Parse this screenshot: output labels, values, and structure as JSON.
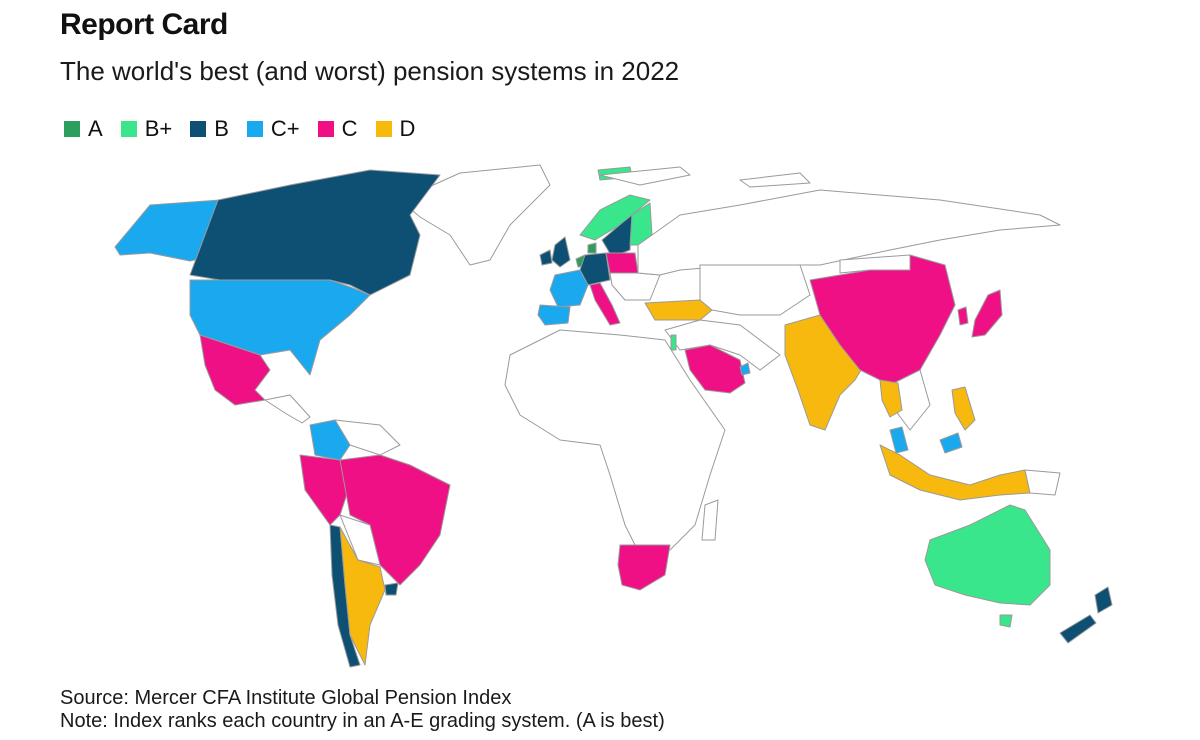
{
  "title": "Report Card",
  "subtitle": "The world's best (and worst) pension systems in 2022",
  "legend": [
    {
      "grade": "A",
      "color": "#2e9e5e"
    },
    {
      "grade": "B+",
      "color": "#3ae68c"
    },
    {
      "grade": "B",
      "color": "#0e4f74"
    },
    {
      "grade": "C+",
      "color": "#1aa9ef"
    },
    {
      "grade": "C",
      "color": "#f01086"
    },
    {
      "grade": "D",
      "color": "#f8b90e"
    }
  ],
  "map": {
    "unrated_color": "#ffffff",
    "border_color": "#9a9a9a",
    "regions": [
      {
        "name": "Alaska",
        "grade": "C+"
      },
      {
        "name": "Canada",
        "grade": "B"
      },
      {
        "name": "United States",
        "grade": "C+"
      },
      {
        "name": "Mexico",
        "grade": "C"
      },
      {
        "name": "Colombia",
        "grade": "C+"
      },
      {
        "name": "Peru",
        "grade": "C"
      },
      {
        "name": "Brazil",
        "grade": "C"
      },
      {
        "name": "Chile",
        "grade": "B"
      },
      {
        "name": "Argentina",
        "grade": "D"
      },
      {
        "name": "Uruguay",
        "grade": "B"
      },
      {
        "name": "Iceland",
        "grade": "B+"
      },
      {
        "name": "Norway",
        "grade": "B+"
      },
      {
        "name": "Sweden",
        "grade": "B"
      },
      {
        "name": "Finland",
        "grade": "B+"
      },
      {
        "name": "Netherlands",
        "grade": "A"
      },
      {
        "name": "Denmark",
        "grade": "A"
      },
      {
        "name": "United Kingdom",
        "grade": "B"
      },
      {
        "name": "Ireland",
        "grade": "B"
      },
      {
        "name": "France",
        "grade": "C+"
      },
      {
        "name": "Germany",
        "grade": "B"
      },
      {
        "name": "Spain",
        "grade": "C+"
      },
      {
        "name": "Italy",
        "grade": "C"
      },
      {
        "name": "Poland",
        "grade": "C"
      },
      {
        "name": "Turkey",
        "grade": "D"
      },
      {
        "name": "Israel",
        "grade": "B+"
      },
      {
        "name": "Saudi Arabia",
        "grade": "C"
      },
      {
        "name": "UAE",
        "grade": "C+"
      },
      {
        "name": "South Africa",
        "grade": "C"
      },
      {
        "name": "India",
        "grade": "D"
      },
      {
        "name": "China",
        "grade": "C"
      },
      {
        "name": "Japan",
        "grade": "C"
      },
      {
        "name": "South Korea",
        "grade": "C"
      },
      {
        "name": "Thailand",
        "grade": "D"
      },
      {
        "name": "Malaysia",
        "grade": "C+"
      },
      {
        "name": "Philippines",
        "grade": "D"
      },
      {
        "name": "Indonesia",
        "grade": "D"
      },
      {
        "name": "Australia",
        "grade": "B+"
      },
      {
        "name": "New Zealand",
        "grade": "B"
      }
    ]
  },
  "footer": {
    "source": "Source: Mercer CFA Institute Global Pension Index",
    "note": "Note: Index ranks each country in an A-E grading system. (A is best)"
  }
}
